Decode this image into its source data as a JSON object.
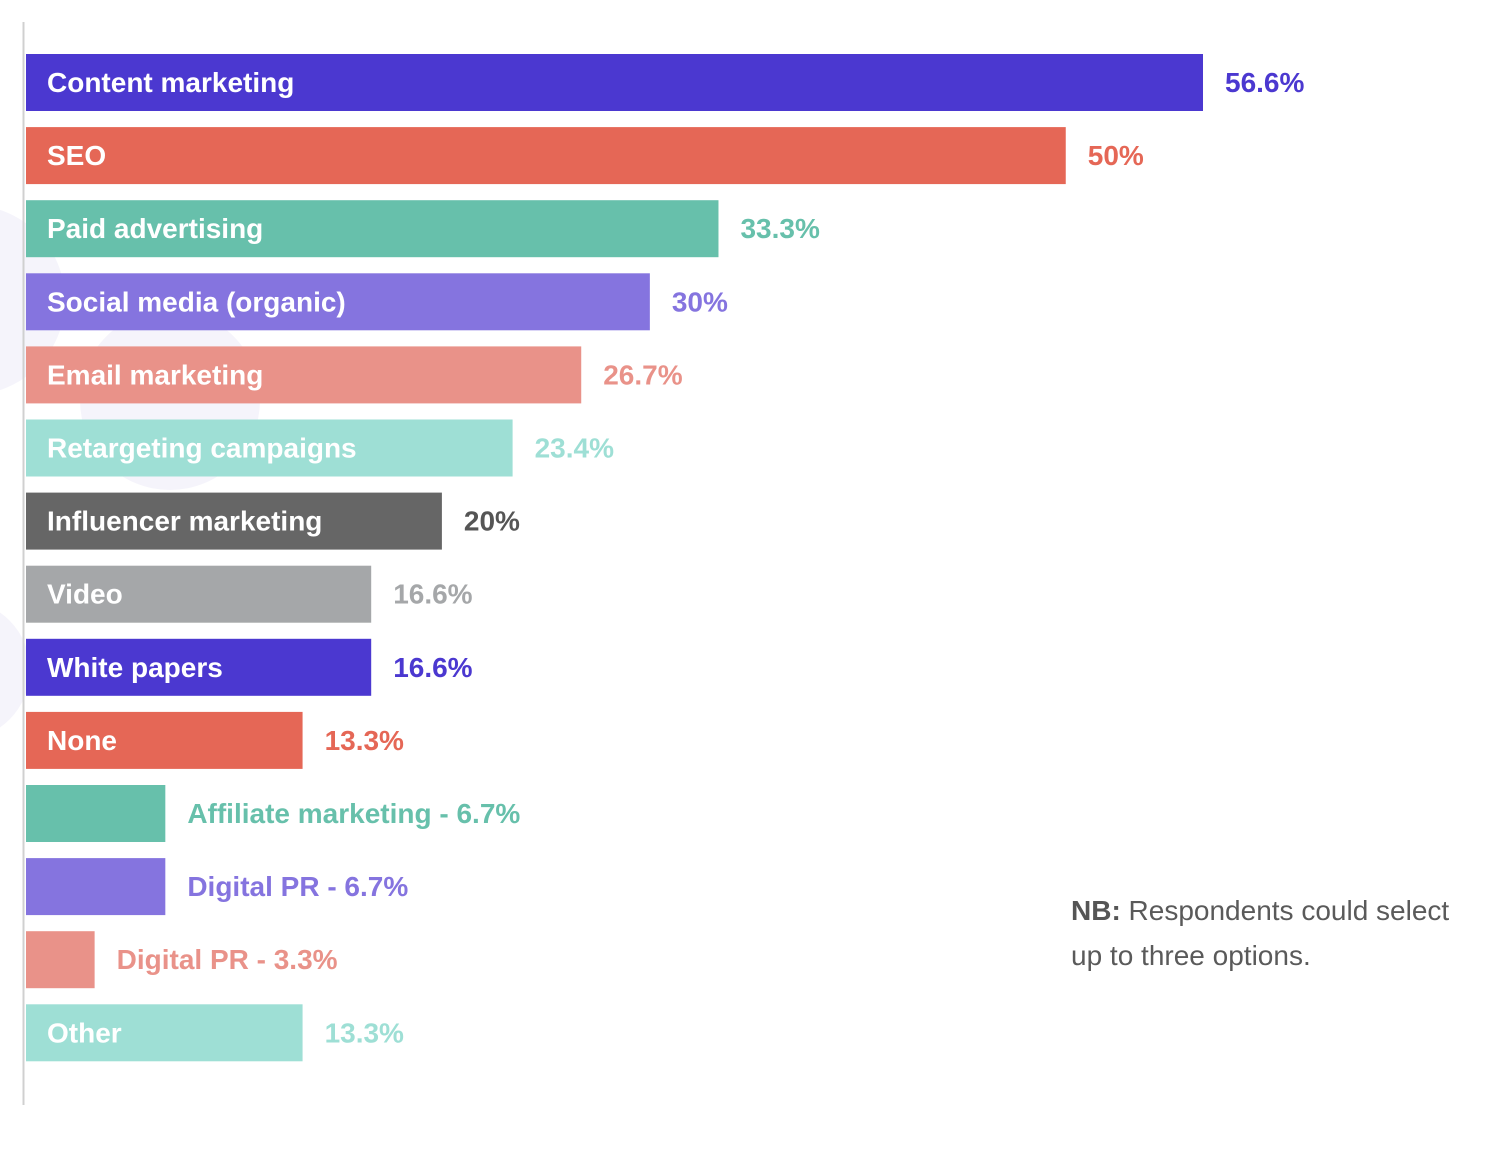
{
  "chart_data": {
    "type": "bar",
    "orientation": "horizontal",
    "categories": [
      "Content marketing",
      "SEO",
      "Paid advertising",
      "Social media (organic)",
      "Email marketing",
      "Retargeting campaigns",
      "Influencer marketing",
      "Video",
      "White papers",
      "None",
      "Affiliate marketing",
      "Digital PR",
      "Digital PR",
      "Other"
    ],
    "values": [
      56.6,
      50,
      33.3,
      30,
      26.7,
      23.4,
      20,
      16.6,
      16.6,
      13.3,
      6.7,
      6.7,
      3.3,
      13.3
    ],
    "value_labels": [
      "56.6%",
      "50%",
      "33.3%",
      "30%",
      "26.7%",
      "23.4%",
      "20%",
      "16.6%",
      "16.6%",
      "13.3%",
      "6.7%",
      "6.7%",
      "3.3%",
      "13.3%"
    ],
    "label_placement": [
      "inside",
      "inside",
      "inside",
      "inside",
      "inside",
      "inside",
      "inside",
      "inside",
      "inside",
      "inside",
      "outside",
      "outside",
      "outside",
      "inside"
    ],
    "colors": [
      "#4b38d0",
      "#e56756",
      "#67c0ab",
      "#8574df",
      "#e99289",
      "#9edfd5",
      "#666666",
      "#a5a7a9",
      "#4b38d0",
      "#e56756",
      "#67c0ab",
      "#8574df",
      "#e99289",
      "#9edfd5"
    ],
    "value_colors": [
      "#4b38d0",
      "#e56756",
      "#67c0ab",
      "#8574df",
      "#e99289",
      "#9edfd5",
      "#555555",
      "#a5a7a9",
      "#4b38d0",
      "#e56756",
      "#67c0ab",
      "#8574df",
      "#e99289",
      "#9edfd5"
    ],
    "inside_label_color": "#ffffff",
    "xlim": [
      0,
      56.6
    ],
    "grid": false,
    "title": "",
    "xlabel": "",
    "ylabel": ""
  },
  "note": {
    "bold": "NB:",
    "text": " Respondents could select up to three options."
  }
}
